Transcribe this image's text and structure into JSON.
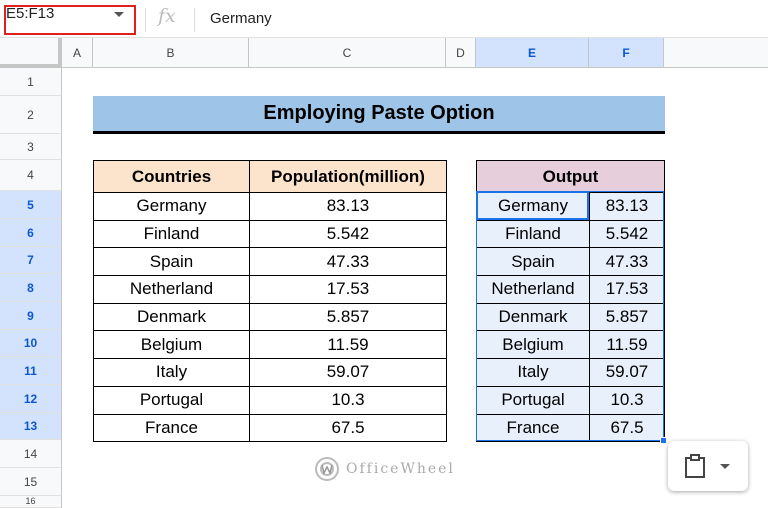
{
  "name_box": {
    "value": "E5:F13"
  },
  "formula_bar": {
    "fx": "fx",
    "value": "Germany"
  },
  "columns": [
    "A",
    "B",
    "C",
    "D",
    "E",
    "F"
  ],
  "rows": [
    "1",
    "2",
    "3",
    "4",
    "5",
    "6",
    "7",
    "8",
    "9",
    "10",
    "11",
    "12",
    "13",
    "14",
    "15",
    "16"
  ],
  "title": "Employing Paste Option",
  "main_table": {
    "headers": [
      "Countries",
      "Population(million)"
    ],
    "rows": [
      [
        "Germany",
        "83.13"
      ],
      [
        "Finland",
        "5.542"
      ],
      [
        "Spain",
        "47.33"
      ],
      [
        "Netherland",
        "17.53"
      ],
      [
        "Denmark",
        "5.857"
      ],
      [
        "Belgium",
        "11.59"
      ],
      [
        "Italy",
        "59.07"
      ],
      [
        "Portugal",
        "10.3"
      ],
      [
        "France",
        "67.5"
      ]
    ]
  },
  "output_table": {
    "header": "Output",
    "rows": [
      [
        "Germany",
        "83.13"
      ],
      [
        "Finland",
        "5.542"
      ],
      [
        "Spain",
        "47.33"
      ],
      [
        "Netherland",
        "17.53"
      ],
      [
        "Denmark",
        "5.857"
      ],
      [
        "Belgium",
        "11.59"
      ],
      [
        "Italy",
        "59.07"
      ],
      [
        "Portugal",
        "10.3"
      ],
      [
        "France",
        "67.5"
      ]
    ]
  },
  "watermark": {
    "text": "OfficeWheel"
  },
  "paste_options": {
    "icon": "clipboard-icon"
  },
  "colors": {
    "selection": "#1a73e8",
    "title_fill": "#9ec5e8",
    "header_fill": "#fce4cc",
    "output_header_fill": "#e6cfdb",
    "name_box_border": "#e0201f"
  }
}
